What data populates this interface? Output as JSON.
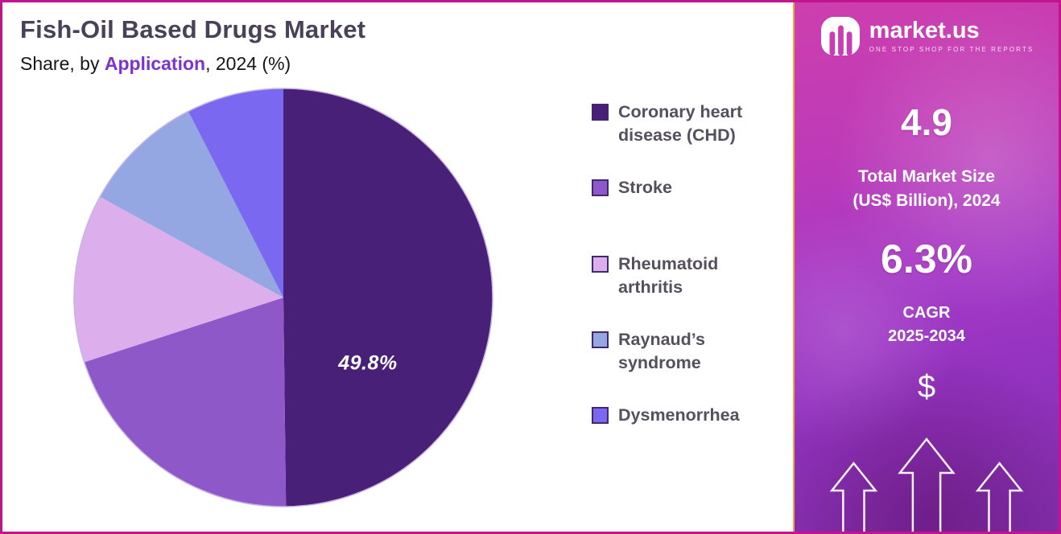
{
  "page": {
    "title": "Fish-Oil Based Drugs Market",
    "subtitle_prefix": "Share, by ",
    "subtitle_highlight": "Application",
    "subtitle_suffix": ", 2024 (%)"
  },
  "chart_data": {
    "type": "pie",
    "title": "Fish-Oil Based Drugs Market — Share, by Application, 2024 (%)",
    "unit": "%",
    "start_angle_deg": 0,
    "direction": "clockwise",
    "legend_position": "right",
    "segments": [
      {
        "label": "Coronary heart disease (CHD)",
        "value": 49.8,
        "data_label": "49.8%",
        "color": "#482078"
      },
      {
        "label": "Stroke",
        "value": 20.2,
        "color": "#8e58c9"
      },
      {
        "label": "Rheumatoid arthritis",
        "value": 13.0,
        "color": "#dcaeec"
      },
      {
        "label": "Raynaud’s syndrome",
        "value": 9.5,
        "color": "#94a7e3"
      },
      {
        "label": "Dysmenorrhea",
        "value": 7.5,
        "color": "#7b68f0"
      }
    ]
  },
  "sidebar": {
    "brand_name": "market.us",
    "brand_tagline": "ONE STOP SHOP FOR THE REPORTS",
    "stat1_value": "4.9",
    "stat1_label_line1": "Total Market Size",
    "stat1_label_line2": "(US$ Billion), 2024",
    "stat2_value": "6.3%",
    "stat2_label_line1": "CAGR",
    "stat2_label_line2": "2025-2034",
    "dollar_symbol": "$"
  },
  "theme": {
    "frame_border": "#c3138e",
    "title_color": "#494158",
    "subtitle_highlight_color": "#7e33cf",
    "legend_text_color": "#55505e",
    "sidebar_gradient_top": "#cd3fae",
    "sidebar_gradient_bottom": "#8430ae",
    "sidebar_accent_border": "#efa83e",
    "pie_outline": "#c7b2e6"
  }
}
